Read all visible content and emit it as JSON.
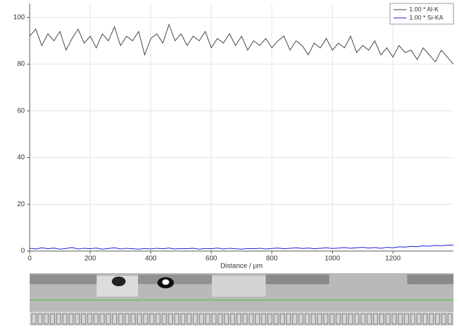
{
  "chart_data": {
    "type": "line",
    "x_label": "Distance / µm",
    "xlim": [
      0,
      1400
    ],
    "xticks": [
      0,
      200,
      400,
      600,
      800,
      1000,
      1200
    ],
    "ylim": [
      0,
      106
    ],
    "yticks": [
      0,
      20,
      40,
      60,
      80,
      100
    ],
    "grid": true,
    "legend": "top-right",
    "x": [
      0,
      20,
      40,
      60,
      80,
      100,
      120,
      140,
      160,
      180,
      200,
      220,
      240,
      260,
      280,
      300,
      320,
      340,
      360,
      380,
      400,
      420,
      440,
      460,
      480,
      500,
      520,
      540,
      560,
      580,
      600,
      620,
      640,
      660,
      680,
      700,
      720,
      740,
      760,
      780,
      800,
      820,
      840,
      860,
      880,
      900,
      920,
      940,
      960,
      980,
      1000,
      1020,
      1040,
      1060,
      1080,
      1100,
      1120,
      1140,
      1160,
      1180,
      1200,
      1220,
      1240,
      1260,
      1280,
      1300,
      1320,
      1340,
      1360,
      1380,
      1400
    ],
    "series": [
      {
        "name": "1.00 * Al-K",
        "color": "#444444",
        "values": [
          92,
          95,
          88,
          93,
          90,
          94,
          86,
          91,
          95,
          89,
          92,
          87,
          93,
          90,
          96,
          88,
          92,
          90,
          94,
          84,
          91,
          93,
          89,
          97,
          90,
          93,
          88,
          92,
          90,
          94,
          87,
          91,
          89,
          93,
          88,
          92,
          86,
          90,
          88,
          91,
          87,
          90,
          92,
          86,
          90,
          88,
          84,
          89,
          87,
          91,
          86,
          89,
          87,
          92,
          85,
          88,
          86,
          90,
          84,
          87,
          83,
          88,
          85,
          86,
          82,
          87,
          84,
          81,
          86,
          83,
          80
        ]
      },
      {
        "name": "1.00 * Si-KA",
        "color": "#1a1adb",
        "values": [
          1.2,
          0.9,
          1.4,
          1.0,
          1.3,
          0.8,
          1.1,
          1.5,
          0.9,
          1.2,
          1.0,
          1.3,
          0.8,
          1.1,
          1.4,
          0.9,
          1.2,
          1.0,
          0.8,
          1.1,
          0.9,
          1.2,
          1.0,
          1.3,
          0.9,
          1.1,
          1.0,
          1.2,
          0.8,
          1.1,
          1.0,
          1.3,
          0.9,
          1.2,
          1.0,
          0.8,
          1.1,
          1.0,
          1.2,
          0.9,
          1.1,
          1.3,
          1.0,
          1.2,
          1.4,
          1.1,
          1.3,
          1.0,
          1.2,
          1.4,
          1.1,
          1.3,
          1.5,
          1.2,
          1.4,
          1.6,
          1.3,
          1.5,
          1.2,
          1.6,
          1.4,
          1.8,
          1.7,
          2.0,
          1.9,
          2.2,
          2.1,
          2.4,
          2.3,
          2.5,
          2.6
        ]
      }
    ]
  }
}
